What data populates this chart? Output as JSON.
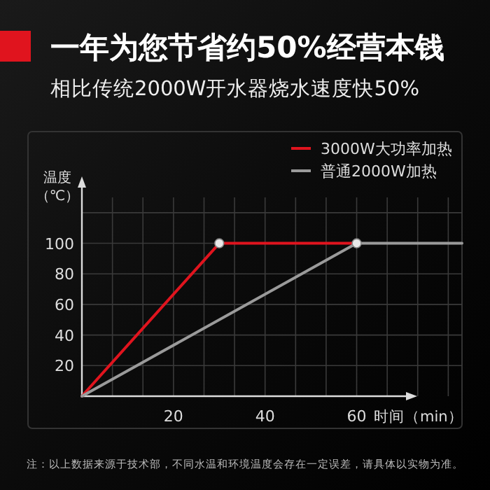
{
  "chart_data": {
    "type": "line",
    "title": "一年为您节省约50%经营本钱",
    "subtitle": "相比传统2000W开水器烧水速度快50%",
    "xlabel": "时间（min）",
    "ylabel": "温度（℃）",
    "annotations": [
      "注：以上数据来源于技术部，不同水温和环境温度会存在一定误差，请具体以实物为准。"
    ],
    "xlim": [
      0,
      83
    ],
    "ylim": [
      0,
      130
    ],
    "xticks": [
      {
        "value": 6.67,
        "label": null
      },
      {
        "value": 13.33,
        "label": null
      },
      20,
      {
        "value": 26.67,
        "label": null
      },
      {
        "value": 33.33,
        "label": null
      },
      40,
      {
        "value": 46.67,
        "label": null
      },
      {
        "value": 53.33,
        "label": null
      },
      60,
      {
        "value": 66.67,
        "label": null
      },
      {
        "value": 73.33,
        "label": null
      },
      {
        "value": 80,
        "label": null
      }
    ],
    "yticks": [
      20,
      40,
      60,
      80,
      100,
      {
        "value": 120,
        "label": null
      }
    ],
    "grid": true,
    "legend": "top right",
    "marker": "none",
    "line_style": "solid",
    "series": [
      {
        "name": "3000W大功率加热",
        "color": "#e0141e",
        "x": [
          0,
          30,
          60
        ],
        "values": [
          0,
          100,
          100
        ]
      },
      {
        "name": "普通2000W加热",
        "color": "#9a9a9a",
        "x": [
          0,
          60,
          83
        ],
        "values": [
          0,
          100,
          100
        ]
      },
      {
        "type": "scatter",
        "marker": "circle",
        "color": "#e8e8e8",
        "x": [
          30,
          60
        ],
        "values": [
          100,
          100
        ]
      }
    ]
  }
}
